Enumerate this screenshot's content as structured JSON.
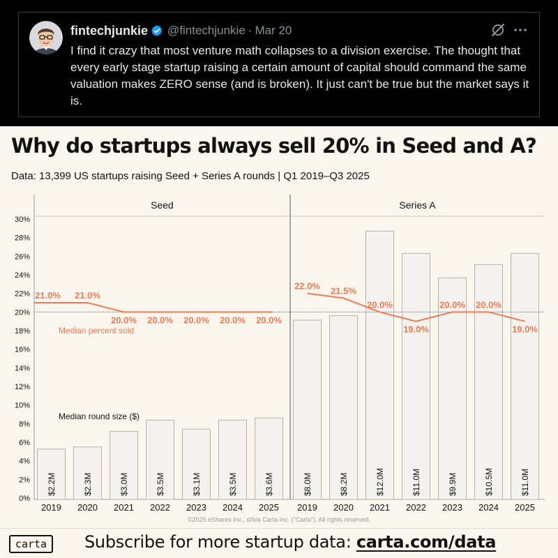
{
  "tweet": {
    "name": "fintechjunkie",
    "handle": "@fintechjunkie",
    "separator": "·",
    "date": "Mar 20",
    "text": "I find it crazy that most venture math collapses to a division exercise. The thought that every early stage startup raising a certain amount of capital should command the same valuation makes ZERO sense (and is broken). It just can't be true but the market says it is.",
    "icons": {
      "verified": "verified-badge-icon",
      "grok": "grok-icon",
      "more": "more-options-icon"
    },
    "colors": {
      "background": "#000000",
      "verified": "#1d9bf0"
    }
  },
  "header": {
    "title": "Why do startups always sell 20% in Seed and A?",
    "subtitle": "Data: 13,399 US startups raising Seed + Series A rounds | Q1 2019–Q3 2025"
  },
  "chart_data": {
    "type": "bar",
    "panels": [
      {
        "name": "Seed",
        "categories": [
          "2019",
          "2020",
          "2021",
          "2022",
          "2023",
          "2024",
          "2025"
        ],
        "bar_values_musd": [
          2.2,
          2.3,
          3.0,
          3.5,
          3.1,
          3.5,
          3.6
        ],
        "bar_labels": [
          "$2.2M",
          "$2.3M",
          "$3.0M",
          "$3.5M",
          "$3.1M",
          "$3.5M",
          "$3.6M"
        ],
        "line_values_pct": [
          21.0,
          21.0,
          20.0,
          20.0,
          20.0,
          20.0,
          20.0
        ],
        "line_labels": [
          "21.0%",
          "21.0%",
          "20.0%",
          "20.0%",
          "20.0%",
          "20.0%",
          "20.0%"
        ]
      },
      {
        "name": "Series A",
        "categories": [
          "2019",
          "2020",
          "2021",
          "2022",
          "2023",
          "2024",
          "2025"
        ],
        "bar_values_musd": [
          8.0,
          8.2,
          12.0,
          11.0,
          9.9,
          10.5,
          11.0
        ],
        "bar_labels": [
          "$8.0M",
          "$8.2M",
          "$12.0M",
          "$11.0M",
          "$9.9M",
          "$10.5M",
          "$11.0M"
        ],
        "line_values_pct": [
          22.0,
          21.5,
          20.0,
          19.0,
          20.0,
          20.0,
          19.0
        ],
        "line_labels": [
          "22.0%",
          "21.5%",
          "20.0%",
          "19.0%",
          "20.0%",
          "20.0%",
          "19.0%"
        ]
      }
    ],
    "y_axis_ticks": [
      "0%",
      "2%",
      "4%",
      "6%",
      "8%",
      "10%",
      "12%",
      "14%",
      "16%",
      "18%",
      "20%",
      "22%",
      "24%",
      "26%",
      "28%",
      "30%"
    ],
    "ylim_pct": [
      0,
      30
    ],
    "bar_scale_musd_per_pct": 0.4182,
    "reference_line_pct": 20,
    "annotations": {
      "line_label": "Median percent sold",
      "bar_label": "Median round size ($)"
    },
    "colors": {
      "bar_fill": "#f4f2ee",
      "bar_stroke": "#b7b3ab",
      "line": "#f07a52",
      "reference_line": "#5a6aa8"
    },
    "legend": "none"
  },
  "copyright": "©2025 eShares Inc., d/b/a Carta Inc. (\"Carta\"). All rights reserved.",
  "footer": {
    "logo": "carta",
    "text": "Subscribe for more startup data: ",
    "link": "carta.com/data"
  }
}
